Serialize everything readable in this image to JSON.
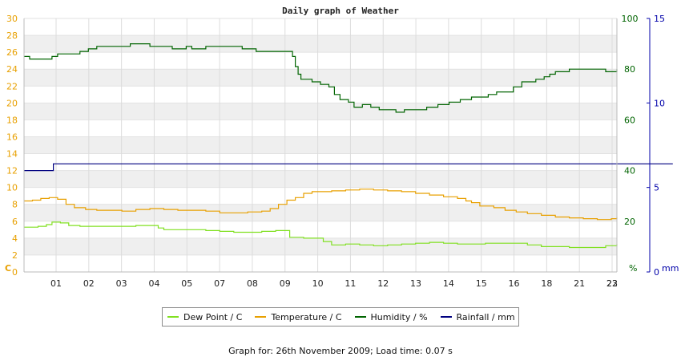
{
  "chart_data": {
    "type": "line",
    "title": "Daily graph of Weather",
    "left_axis": {
      "label": "C",
      "min": 0,
      "max": 30,
      "ticks": [
        0,
        2,
        4,
        6,
        8,
        10,
        12,
        14,
        16,
        18,
        20,
        22,
        24,
        26,
        28,
        30
      ],
      "color": "#e8a000"
    },
    "right_axis_humidity": {
      "label": "%",
      "min": 0,
      "max": 100,
      "ticks": [
        0,
        20,
        40,
        60,
        80,
        100
      ],
      "color": "#006400"
    },
    "right_axis_rain": {
      "label": "mm",
      "min": 0,
      "max": 15,
      "ticks": [
        0,
        5,
        10,
        15
      ],
      "color": "#0000aa"
    },
    "x_ticks": [
      "01",
      "02",
      "03",
      "04",
      "05",
      "07",
      "08",
      "09",
      "10",
      "11",
      "12",
      "13",
      "14",
      "15",
      "16",
      "18",
      "21",
      "22",
      "23"
    ],
    "x_range": [
      0,
      23.2
    ],
    "grid": true,
    "legend_position": "bottom",
    "series": [
      {
        "name": "Dew Point / C",
        "color": "#80e020",
        "axis": "left",
        "points": [
          [
            0,
            5.3
          ],
          [
            0.5,
            5.4
          ],
          [
            0.8,
            5.6
          ],
          [
            1.0,
            5.9
          ],
          [
            1.3,
            5.8
          ],
          [
            1.6,
            5.5
          ],
          [
            2.0,
            5.4
          ],
          [
            2.5,
            5.4
          ],
          [
            3.0,
            5.4
          ],
          [
            3.5,
            5.4
          ],
          [
            4.0,
            5.5
          ],
          [
            4.5,
            5.5
          ],
          [
            4.8,
            5.2
          ],
          [
            5.0,
            5.0
          ],
          [
            5.5,
            5.0
          ],
          [
            6.0,
            5.0
          ],
          [
            6.5,
            4.9
          ],
          [
            7.0,
            4.8
          ],
          [
            7.5,
            4.7
          ],
          [
            8.0,
            4.7
          ],
          [
            8.5,
            4.8
          ],
          [
            9.0,
            4.9
          ],
          [
            9.4,
            4.9
          ],
          [
            9.5,
            4.1
          ],
          [
            10.0,
            4.0
          ],
          [
            10.5,
            4.0
          ],
          [
            10.7,
            3.6
          ],
          [
            11.0,
            3.2
          ],
          [
            11.5,
            3.3
          ],
          [
            12.0,
            3.2
          ],
          [
            12.5,
            3.1
          ],
          [
            13.0,
            3.2
          ],
          [
            13.5,
            3.3
          ],
          [
            14.0,
            3.4
          ],
          [
            14.5,
            3.5
          ],
          [
            15.0,
            3.4
          ],
          [
            15.5,
            3.3
          ],
          [
            16.0,
            3.3
          ],
          [
            16.5,
            3.4
          ],
          [
            17.0,
            3.4
          ],
          [
            17.5,
            3.4
          ],
          [
            18.0,
            3.2
          ],
          [
            18.5,
            3.0
          ],
          [
            19.0,
            3.0
          ],
          [
            19.5,
            2.9
          ],
          [
            20.0,
            2.9
          ],
          [
            20.5,
            2.9
          ],
          [
            20.8,
            3.1
          ],
          [
            21.0,
            3.1
          ],
          [
            21.2,
            3.3
          ]
        ]
      },
      {
        "name": "Temperature / C",
        "color": "#e8a000",
        "axis": "left",
        "points": [
          [
            0,
            8.4
          ],
          [
            0.3,
            8.5
          ],
          [
            0.6,
            8.7
          ],
          [
            0.9,
            8.8
          ],
          [
            1.2,
            8.6
          ],
          [
            1.5,
            8.0
          ],
          [
            1.8,
            7.6
          ],
          [
            2.2,
            7.4
          ],
          [
            2.6,
            7.3
          ],
          [
            3.0,
            7.3
          ],
          [
            3.5,
            7.2
          ],
          [
            4.0,
            7.4
          ],
          [
            4.5,
            7.5
          ],
          [
            5.0,
            7.4
          ],
          [
            5.5,
            7.3
          ],
          [
            6.0,
            7.3
          ],
          [
            6.5,
            7.2
          ],
          [
            7.0,
            7.0
          ],
          [
            7.5,
            7.0
          ],
          [
            8.0,
            7.1
          ],
          [
            8.5,
            7.2
          ],
          [
            8.8,
            7.5
          ],
          [
            9.1,
            8.0
          ],
          [
            9.4,
            8.5
          ],
          [
            9.7,
            8.8
          ],
          [
            10.0,
            9.3
          ],
          [
            10.3,
            9.5
          ],
          [
            10.7,
            9.5
          ],
          [
            11.0,
            9.6
          ],
          [
            11.5,
            9.7
          ],
          [
            12.0,
            9.8
          ],
          [
            12.5,
            9.7
          ],
          [
            13.0,
            9.6
          ],
          [
            13.5,
            9.5
          ],
          [
            14.0,
            9.3
          ],
          [
            14.5,
            9.1
          ],
          [
            15.0,
            8.9
          ],
          [
            15.5,
            8.7
          ],
          [
            15.8,
            8.4
          ],
          [
            16.0,
            8.2
          ],
          [
            16.3,
            7.8
          ],
          [
            16.8,
            7.6
          ],
          [
            17.2,
            7.3
          ],
          [
            17.6,
            7.1
          ],
          [
            18.0,
            6.9
          ],
          [
            18.5,
            6.7
          ],
          [
            19.0,
            6.5
          ],
          [
            19.5,
            6.4
          ],
          [
            20.0,
            6.3
          ],
          [
            20.5,
            6.2
          ],
          [
            20.8,
            6.2
          ],
          [
            21.0,
            6.3
          ],
          [
            21.2,
            6.5
          ]
        ]
      },
      {
        "name": "Humidity / %",
        "color": "#006400",
        "axis": "right_humidity",
        "points": [
          [
            0,
            85
          ],
          [
            0.1,
            85
          ],
          [
            0.2,
            84
          ],
          [
            0.9,
            84
          ],
          [
            1.0,
            85
          ],
          [
            1.2,
            86
          ],
          [
            1.9,
            86
          ],
          [
            2.0,
            87
          ],
          [
            2.3,
            88
          ],
          [
            2.5,
            88
          ],
          [
            2.6,
            89
          ],
          [
            3.7,
            89
          ],
          [
            3.8,
            90
          ],
          [
            4.4,
            90
          ],
          [
            4.5,
            89
          ],
          [
            5.2,
            89
          ],
          [
            5.3,
            88
          ],
          [
            5.7,
            88
          ],
          [
            5.8,
            89
          ],
          [
            6.0,
            88
          ],
          [
            6.4,
            88
          ],
          [
            6.5,
            89
          ],
          [
            7.7,
            89
          ],
          [
            7.8,
            88
          ],
          [
            8.2,
            88
          ],
          [
            8.3,
            87
          ],
          [
            9.4,
            87
          ],
          [
            9.6,
            85
          ],
          [
            9.7,
            81
          ],
          [
            9.8,
            78
          ],
          [
            9.9,
            76
          ],
          [
            10.1,
            76
          ],
          [
            10.3,
            75
          ],
          [
            10.6,
            74
          ],
          [
            10.9,
            73
          ],
          [
            11.1,
            70
          ],
          [
            11.3,
            68
          ],
          [
            11.6,
            67
          ],
          [
            11.8,
            65
          ],
          [
            12.1,
            66
          ],
          [
            12.4,
            65
          ],
          [
            12.7,
            64
          ],
          [
            13.0,
            64
          ],
          [
            13.3,
            63
          ],
          [
            13.6,
            64
          ],
          [
            14.0,
            64
          ],
          [
            14.4,
            65
          ],
          [
            14.8,
            66
          ],
          [
            15.2,
            67
          ],
          [
            15.6,
            68
          ],
          [
            16.0,
            69
          ],
          [
            16.3,
            69
          ],
          [
            16.6,
            70
          ],
          [
            16.9,
            71
          ],
          [
            17.2,
            71
          ],
          [
            17.5,
            73
          ],
          [
            17.8,
            75
          ],
          [
            18.1,
            75
          ],
          [
            18.3,
            76
          ],
          [
            18.6,
            77
          ],
          [
            18.8,
            78
          ],
          [
            19.0,
            79
          ],
          [
            19.3,
            79
          ],
          [
            19.5,
            80
          ],
          [
            20.5,
            80
          ],
          [
            20.8,
            79
          ],
          [
            21.0,
            79
          ],
          [
            21.2,
            80
          ]
        ]
      },
      {
        "name": "Rainfall / mm",
        "color": "#000080",
        "axis": "right_rain",
        "points": [
          [
            0,
            6.0
          ],
          [
            1.0,
            6.0
          ],
          [
            1.05,
            6.4
          ],
          [
            23.2,
            6.4
          ]
        ]
      }
    ]
  },
  "footer_text": "Graph for: 26th November 2009; Load time: 0.07 s"
}
